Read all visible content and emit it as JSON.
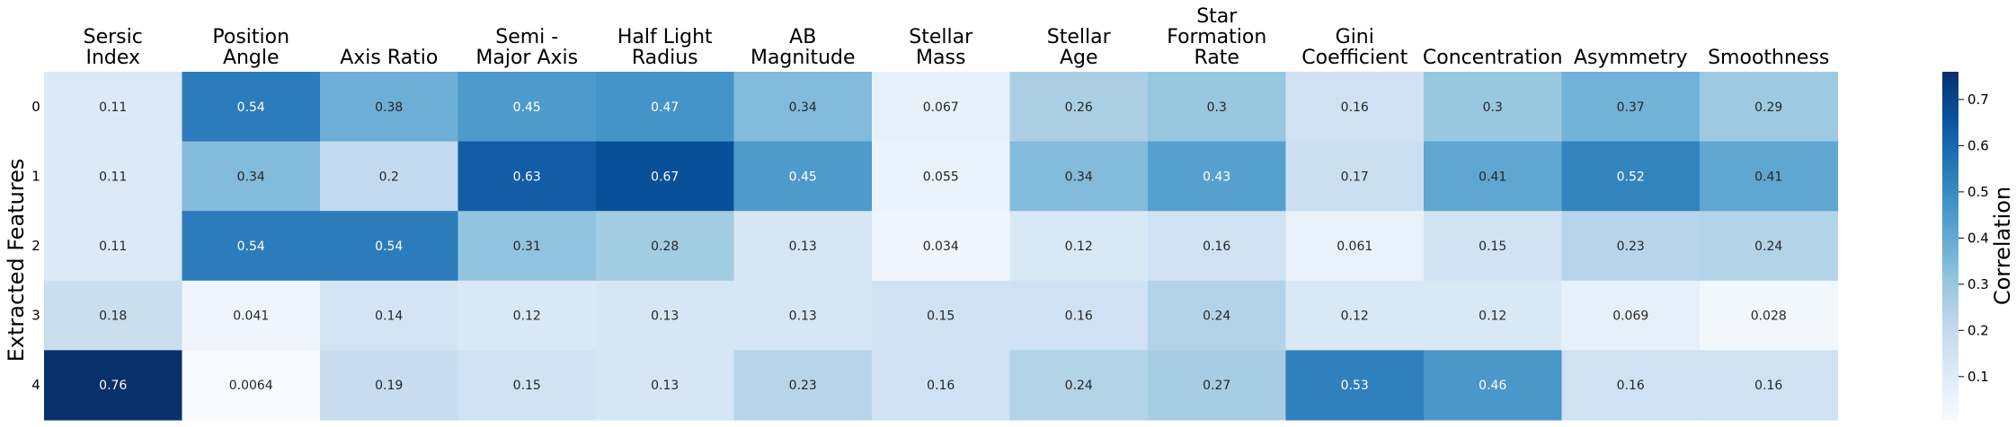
{
  "chart_data": {
    "type": "heatmap",
    "columns": [
      "Sersic\nIndex",
      "Position\nAngle",
      "Axis Ratio",
      "Semi -\nMajor Axis",
      "Half Light\nRadius",
      "AB\nMagnitude",
      "Stellar\nMass",
      "Stellar\nAge",
      "Star\nFormation\nRate",
      "Gini\nCoefficient",
      "Concentration",
      "Asymmetry",
      "Smoothness"
    ],
    "rows": [
      "0",
      "1",
      "2",
      "3",
      "4"
    ],
    "values": [
      [
        0.11,
        0.54,
        0.38,
        0.45,
        0.47,
        0.34,
        0.067,
        0.26,
        0.3,
        0.16,
        0.3,
        0.37,
        0.29
      ],
      [
        0.11,
        0.34,
        0.2,
        0.63,
        0.67,
        0.45,
        0.055,
        0.34,
        0.43,
        0.17,
        0.41,
        0.52,
        0.41
      ],
      [
        0.11,
        0.54,
        0.54,
        0.31,
        0.28,
        0.13,
        0.034,
        0.12,
        0.16,
        0.061,
        0.15,
        0.23,
        0.24
      ],
      [
        0.18,
        0.041,
        0.14,
        0.12,
        0.13,
        0.13,
        0.15,
        0.16,
        0.24,
        0.12,
        0.12,
        0.069,
        0.028
      ],
      [
        0.76,
        0.0064,
        0.19,
        0.15,
        0.13,
        0.23,
        0.16,
        0.24,
        0.27,
        0.53,
        0.46,
        0.16,
        0.16
      ]
    ],
    "value_labels": [
      [
        "0.11",
        "0.54",
        "0.38",
        "0.45",
        "0.47",
        "0.34",
        "0.067",
        "0.26",
        "0.3",
        "0.16",
        "0.3",
        "0.37",
        "0.29"
      ],
      [
        "0.11",
        "0.34",
        "0.2",
        "0.63",
        "0.67",
        "0.45",
        "0.055",
        "0.34",
        "0.43",
        "0.17",
        "0.41",
        "0.52",
        "0.41"
      ],
      [
        "0.11",
        "0.54",
        "0.54",
        "0.31",
        "0.28",
        "0.13",
        "0.034",
        "0.12",
        "0.16",
        "0.061",
        "0.15",
        "0.23",
        "0.24"
      ],
      [
        "0.18",
        "0.041",
        "0.14",
        "0.12",
        "0.13",
        "0.13",
        "0.15",
        "0.16",
        "0.24",
        "0.12",
        "0.12",
        "0.069",
        "0.028"
      ],
      [
        "0.76",
        "0.0064",
        "0.19",
        "0.15",
        "0.13",
        "0.23",
        "0.16",
        "0.24",
        "0.27",
        "0.53",
        "0.46",
        "0.16",
        "0.16"
      ]
    ],
    "ylabel": "Extracted Features",
    "colorbar": {
      "label": "Correlation",
      "range": [
        0.0064,
        0.76
      ],
      "ticks": [
        0.1,
        0.2,
        0.3,
        0.4,
        0.5,
        0.6,
        0.7
      ],
      "tick_labels": [
        "0.1",
        "0.2",
        "0.3",
        "0.4",
        "0.5",
        "0.6",
        "0.7"
      ],
      "colormap": "Blues",
      "low_color": "#f7fbff",
      "high_color": "#08306b"
    },
    "column_labels_position": "top",
    "grid": false
  }
}
